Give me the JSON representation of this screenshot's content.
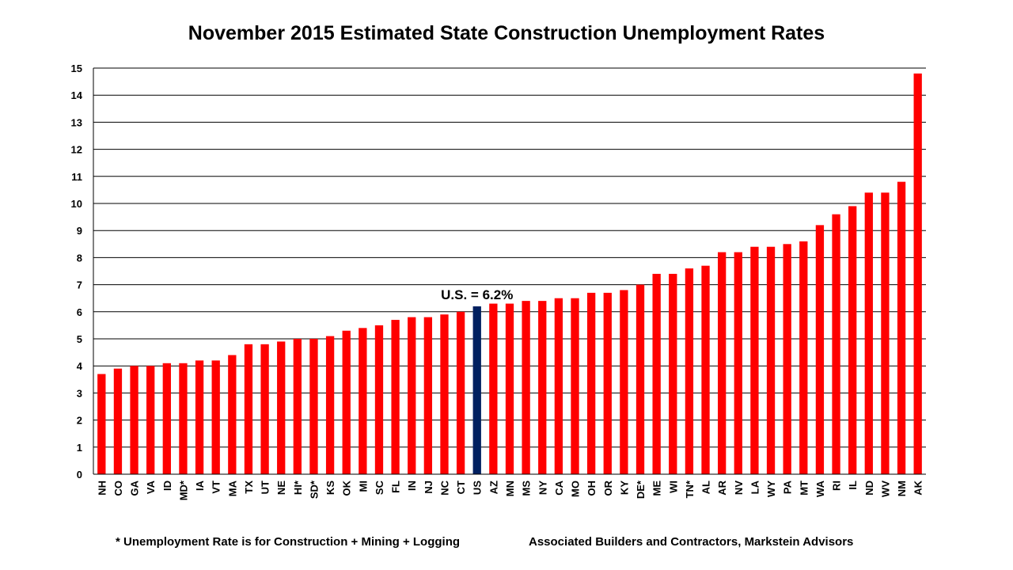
{
  "chart_data": {
    "type": "bar",
    "title": "November 2015 Estimated State Construction Unemployment Rates",
    "xlabel": "",
    "ylabel": "",
    "ylim": [
      0,
      15
    ],
    "yticks": [
      "0",
      "1",
      "2",
      "3",
      "4",
      "5",
      "6",
      "7",
      "8",
      "9",
      "10",
      "11",
      "12",
      "13",
      "14",
      "15"
    ],
    "grid": true,
    "legend": "none",
    "categories": [
      "NH",
      "CO",
      "GA",
      "VA",
      "ID",
      "MD*",
      "IA",
      "VT",
      "MA",
      "TX",
      "UT",
      "NE",
      "HI*",
      "SD*",
      "KS",
      "OK",
      "MI",
      "SC",
      "FL",
      "IN",
      "NJ",
      "NC",
      "CT",
      "US",
      "AZ",
      "MN",
      "MS",
      "NY",
      "CA",
      "MO",
      "OH",
      "OR",
      "KY",
      "DE*",
      "ME",
      "WI",
      "TN*",
      "AL",
      "AR",
      "NV",
      "LA",
      "WY",
      "PA",
      "MT",
      "WA",
      "RI",
      "IL",
      "ND",
      "WV",
      "NM",
      "AK"
    ],
    "values": [
      3.7,
      3.9,
      4.0,
      4.0,
      4.1,
      4.1,
      4.2,
      4.2,
      4.4,
      4.8,
      4.8,
      4.9,
      5.0,
      5.0,
      5.1,
      5.3,
      5.4,
      5.5,
      5.7,
      5.8,
      5.8,
      5.9,
      6.0,
      6.2,
      6.3,
      6.3,
      6.4,
      6.4,
      6.5,
      6.5,
      6.7,
      6.7,
      6.8,
      7.0,
      7.4,
      7.4,
      7.6,
      7.7,
      8.2,
      8.2,
      8.4,
      8.4,
      8.5,
      8.6,
      9.2,
      9.6,
      9.9,
      10.4,
      10.4,
      10.8,
      14.8
    ],
    "highlight_category": "US",
    "annotation": "U.S. = 6.2%",
    "colors": {
      "bar": "#ff0000",
      "highlight": "#002060",
      "grid": "#000000"
    }
  },
  "footnotes": {
    "left": "* Unemployment Rate is for Construction + Mining + Logging",
    "right": "Associated Builders and Contractors, Markstein Advisors"
  }
}
